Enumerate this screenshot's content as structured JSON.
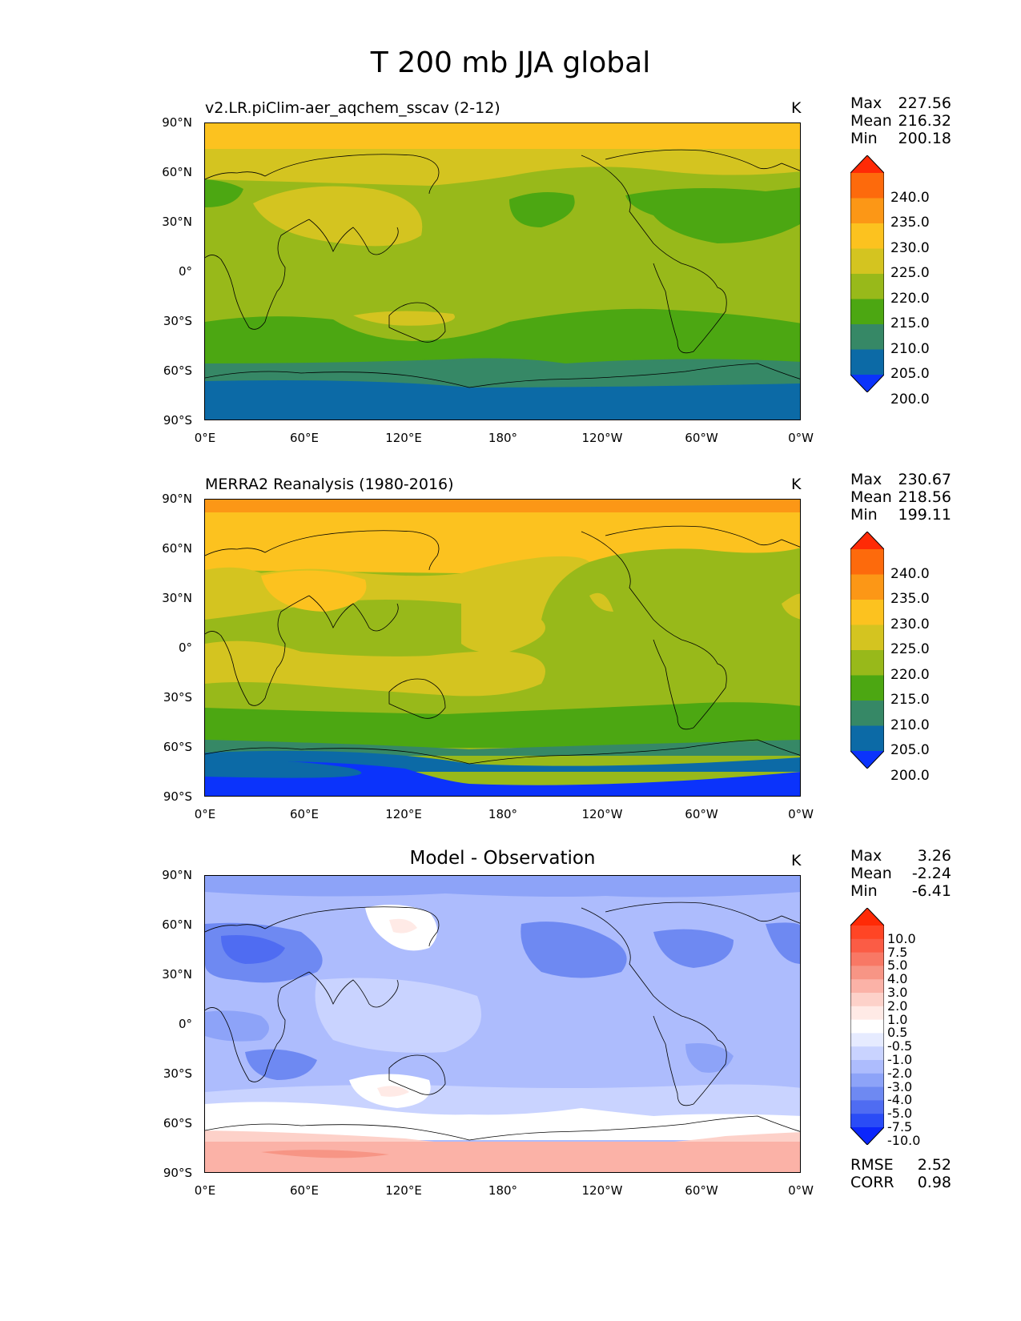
{
  "figure_title": "T 200 mb JJA global",
  "axes": {
    "lat_ticks": [
      "90°N",
      "60°N",
      "30°N",
      "0°",
      "30°S",
      "60°S",
      "90°S"
    ],
    "lon_ticks": [
      "0°E",
      "60°E",
      "120°E",
      "180°",
      "120°W",
      "60°W",
      "0°W"
    ]
  },
  "panels": [
    {
      "title": "v2.LR.piClim-aer_aqchem_sscav (2-12)",
      "units": "K",
      "stats": {
        "max_label": "Max",
        "max": "227.56",
        "mean_label": "Mean",
        "mean": "216.32",
        "min_label": "Min",
        "min": "200.18"
      },
      "colorbar": {
        "labels": [
          "240.0",
          "235.0",
          "230.0",
          "225.0",
          "220.0",
          "215.0",
          "210.0",
          "205.0",
          "200.0"
        ],
        "colors": [
          "#ff2a06",
          "#fd6a0c",
          "#fc9716",
          "#fcc21f",
          "#d4c420",
          "#98b91a",
          "#4ca712",
          "#368866",
          "#0c6aa6",
          "#0b33fb"
        ]
      }
    },
    {
      "title": "MERRA2 Reanalysis (1980-2016)",
      "units": "K",
      "stats": {
        "max_label": "Max",
        "max": "230.67",
        "mean_label": "Mean",
        "mean": "218.56",
        "min_label": "Min",
        "min": "199.11"
      },
      "colorbar": {
        "labels": [
          "240.0",
          "235.0",
          "230.0",
          "225.0",
          "220.0",
          "215.0",
          "210.0",
          "205.0",
          "200.0"
        ],
        "colors": [
          "#ff2a06",
          "#fd6a0c",
          "#fc9716",
          "#fcc21f",
          "#d4c420",
          "#98b91a",
          "#4ca712",
          "#368866",
          "#0c6aa6",
          "#0b33fb"
        ]
      }
    },
    {
      "title": "Model - Observation",
      "units": "K",
      "stats": {
        "max_label": "Max",
        "max": "3.26",
        "mean_label": "Mean",
        "mean": "-2.24",
        "min_label": "Min",
        "min": "-6.41"
      },
      "colorbar": {
        "labels": [
          "10.0",
          "7.5",
          "5.0",
          "4.0",
          "3.0",
          "2.0",
          "1.0",
          "0.5",
          "-0.5",
          "-1.0",
          "-2.0",
          "-3.0",
          "-4.0",
          "-5.0",
          "-7.5",
          "-10.0"
        ],
        "colors": [
          "#ff2a06",
          "#ff4525",
          "#fb5c45",
          "#f87865",
          "#f79585",
          "#fbb2a7",
          "#fdd1c9",
          "#ffeae6",
          "#ffffff",
          "#e6ebff",
          "#c9d3ff",
          "#adbcfd",
          "#8da3f8",
          "#6e89f2",
          "#4f6cf2",
          "#2a4cf6",
          "#0b26fb"
        ]
      },
      "metrics": {
        "rmse_label": "RMSE",
        "rmse": "2.52",
        "corr_label": "CORR",
        "corr": "0.98"
      }
    }
  ]
}
